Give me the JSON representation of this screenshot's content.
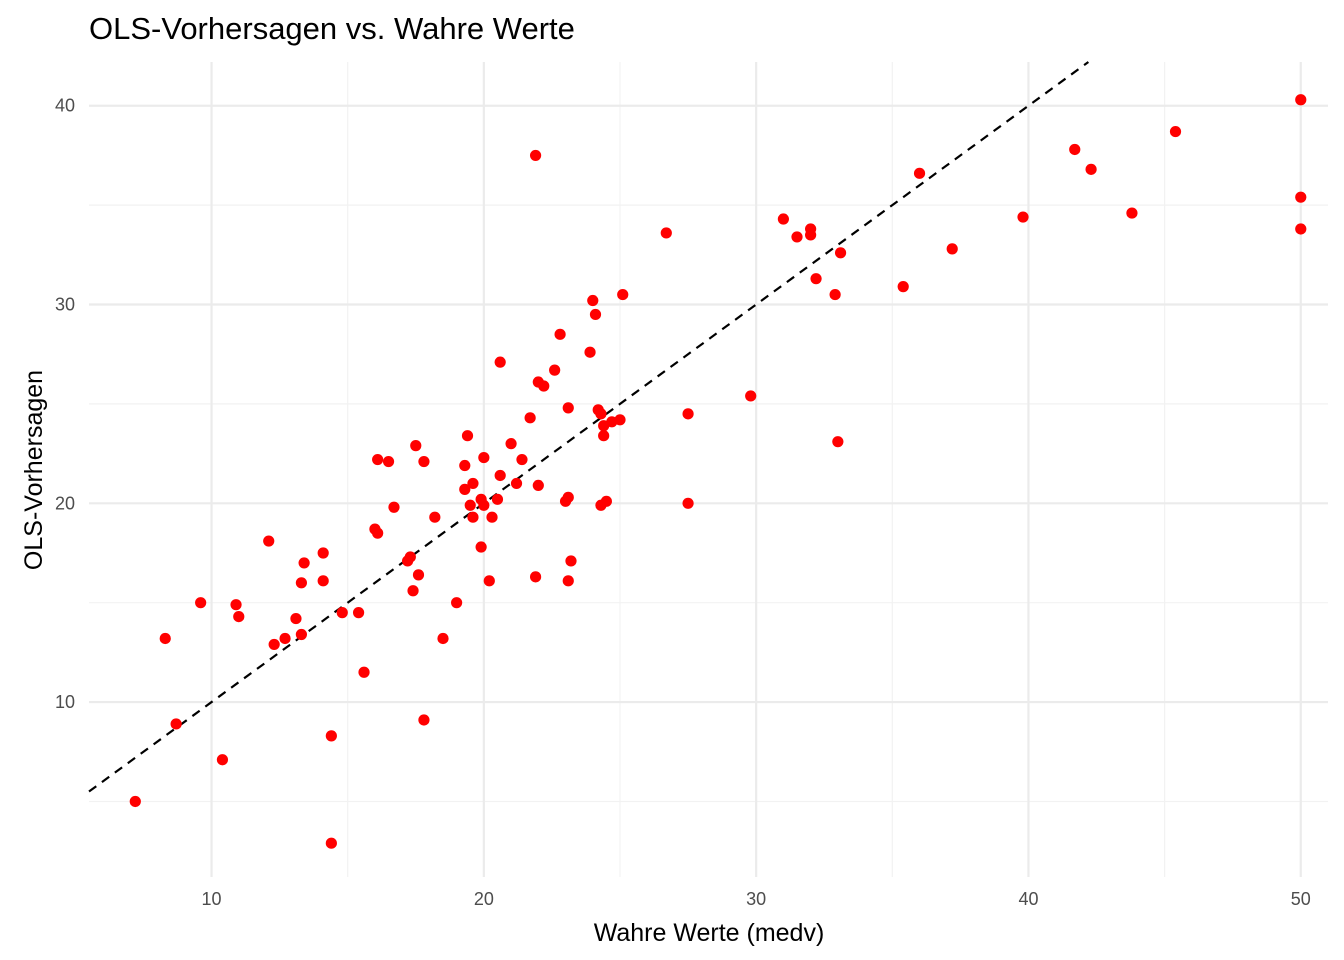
{
  "chart_data": {
    "type": "scatter",
    "title": "OLS-Vorhersagen vs. Wahre Werte",
    "xlabel": "Wahre Werte (medv)",
    "ylabel": "OLS-Vorhersagen",
    "xlim": [
      5.5,
      51.0
    ],
    "ylim": [
      1.2,
      42.2
    ],
    "x_ticks": [
      10,
      20,
      30,
      40,
      50
    ],
    "y_ticks": [
      10,
      20,
      30,
      40
    ],
    "x_minor_ticks": [
      15,
      25,
      35,
      45
    ],
    "y_minor_ticks": [
      5,
      15,
      25,
      35
    ],
    "grid": true,
    "point_color": "#ff0000",
    "reference_line": {
      "style": "dashed",
      "color": "#000000",
      "slope": 1,
      "intercept": 0
    },
    "points": [
      {
        "x": 7.2,
        "y": 5.0
      },
      {
        "x": 8.3,
        "y": 13.2
      },
      {
        "x": 8.7,
        "y": 8.9
      },
      {
        "x": 9.6,
        "y": 15.0
      },
      {
        "x": 10.4,
        "y": 7.1
      },
      {
        "x": 10.9,
        "y": 14.9
      },
      {
        "x": 11.0,
        "y": 14.3
      },
      {
        "x": 12.1,
        "y": 18.1
      },
      {
        "x": 12.3,
        "y": 12.9
      },
      {
        "x": 12.7,
        "y": 13.2
      },
      {
        "x": 13.1,
        "y": 14.2
      },
      {
        "x": 13.3,
        "y": 13.4
      },
      {
        "x": 13.3,
        "y": 16.0
      },
      {
        "x": 13.4,
        "y": 17.0
      },
      {
        "x": 14.1,
        "y": 16.1
      },
      {
        "x": 14.1,
        "y": 17.5
      },
      {
        "x": 14.4,
        "y": 8.3
      },
      {
        "x": 14.4,
        "y": 2.9
      },
      {
        "x": 14.8,
        "y": 14.5
      },
      {
        "x": 15.4,
        "y": 14.5
      },
      {
        "x": 15.6,
        "y": 11.5
      },
      {
        "x": 16.0,
        "y": 18.7
      },
      {
        "x": 16.1,
        "y": 18.5
      },
      {
        "x": 16.1,
        "y": 22.2
      },
      {
        "x": 16.5,
        "y": 22.1
      },
      {
        "x": 16.7,
        "y": 19.8
      },
      {
        "x": 17.2,
        "y": 17.1
      },
      {
        "x": 17.3,
        "y": 17.3
      },
      {
        "x": 17.4,
        "y": 15.6
      },
      {
        "x": 17.5,
        "y": 22.9
      },
      {
        "x": 17.6,
        "y": 16.4
      },
      {
        "x": 17.8,
        "y": 9.1
      },
      {
        "x": 17.8,
        "y": 22.1
      },
      {
        "x": 18.2,
        "y": 19.3
      },
      {
        "x": 18.5,
        "y": 13.2
      },
      {
        "x": 19.0,
        "y": 15.0
      },
      {
        "x": 19.3,
        "y": 21.9
      },
      {
        "x": 19.3,
        "y": 20.7
      },
      {
        "x": 19.4,
        "y": 23.4
      },
      {
        "x": 19.5,
        "y": 19.9
      },
      {
        "x": 19.6,
        "y": 21.0
      },
      {
        "x": 19.6,
        "y": 19.3
      },
      {
        "x": 19.9,
        "y": 20.2
      },
      {
        "x": 19.9,
        "y": 17.8
      },
      {
        "x": 20.0,
        "y": 22.3
      },
      {
        "x": 20.0,
        "y": 19.9
      },
      {
        "x": 20.2,
        "y": 16.1
      },
      {
        "x": 20.3,
        "y": 19.3
      },
      {
        "x": 20.5,
        "y": 20.2
      },
      {
        "x": 20.6,
        "y": 21.4
      },
      {
        "x": 20.6,
        "y": 27.1
      },
      {
        "x": 21.0,
        "y": 23.0
      },
      {
        "x": 21.2,
        "y": 21.0
      },
      {
        "x": 21.4,
        "y": 22.2
      },
      {
        "x": 21.7,
        "y": 24.3
      },
      {
        "x": 21.9,
        "y": 37.5
      },
      {
        "x": 21.9,
        "y": 16.3
      },
      {
        "x": 22.0,
        "y": 26.1
      },
      {
        "x": 22.0,
        "y": 20.9
      },
      {
        "x": 22.2,
        "y": 25.9
      },
      {
        "x": 22.6,
        "y": 26.7
      },
      {
        "x": 22.8,
        "y": 28.5
      },
      {
        "x": 23.0,
        "y": 20.1
      },
      {
        "x": 23.1,
        "y": 20.3
      },
      {
        "x": 23.1,
        "y": 24.8
      },
      {
        "x": 23.1,
        "y": 16.1
      },
      {
        "x": 23.2,
        "y": 17.1
      },
      {
        "x": 23.9,
        "y": 27.6
      },
      {
        "x": 24.0,
        "y": 30.2
      },
      {
        "x": 24.1,
        "y": 29.5
      },
      {
        "x": 24.2,
        "y": 24.7
      },
      {
        "x": 24.3,
        "y": 19.9
      },
      {
        "x": 24.3,
        "y": 24.5
      },
      {
        "x": 24.4,
        "y": 23.9
      },
      {
        "x": 24.4,
        "y": 23.4
      },
      {
        "x": 24.5,
        "y": 20.1
      },
      {
        "x": 24.7,
        "y": 24.1
      },
      {
        "x": 25.0,
        "y": 24.2
      },
      {
        "x": 25.1,
        "y": 30.5
      },
      {
        "x": 26.7,
        "y": 33.6
      },
      {
        "x": 27.5,
        "y": 24.5
      },
      {
        "x": 27.5,
        "y": 20.0
      },
      {
        "x": 29.8,
        "y": 25.4
      },
      {
        "x": 31.0,
        "y": 34.3
      },
      {
        "x": 31.5,
        "y": 33.4
      },
      {
        "x": 32.0,
        "y": 33.8
      },
      {
        "x": 32.0,
        "y": 33.5
      },
      {
        "x": 32.2,
        "y": 31.3
      },
      {
        "x": 32.9,
        "y": 30.5
      },
      {
        "x": 33.0,
        "y": 23.1
      },
      {
        "x": 33.1,
        "y": 32.6
      },
      {
        "x": 35.4,
        "y": 30.9
      },
      {
        "x": 36.0,
        "y": 36.6
      },
      {
        "x": 37.2,
        "y": 32.8
      },
      {
        "x": 39.8,
        "y": 34.4
      },
      {
        "x": 41.7,
        "y": 37.8
      },
      {
        "x": 42.3,
        "y": 36.8
      },
      {
        "x": 43.8,
        "y": 34.6
      },
      {
        "x": 45.4,
        "y": 38.7
      },
      {
        "x": 50.0,
        "y": 40.3
      },
      {
        "x": 50.0,
        "y": 35.4
      },
      {
        "x": 50.0,
        "y": 33.8
      }
    ]
  }
}
